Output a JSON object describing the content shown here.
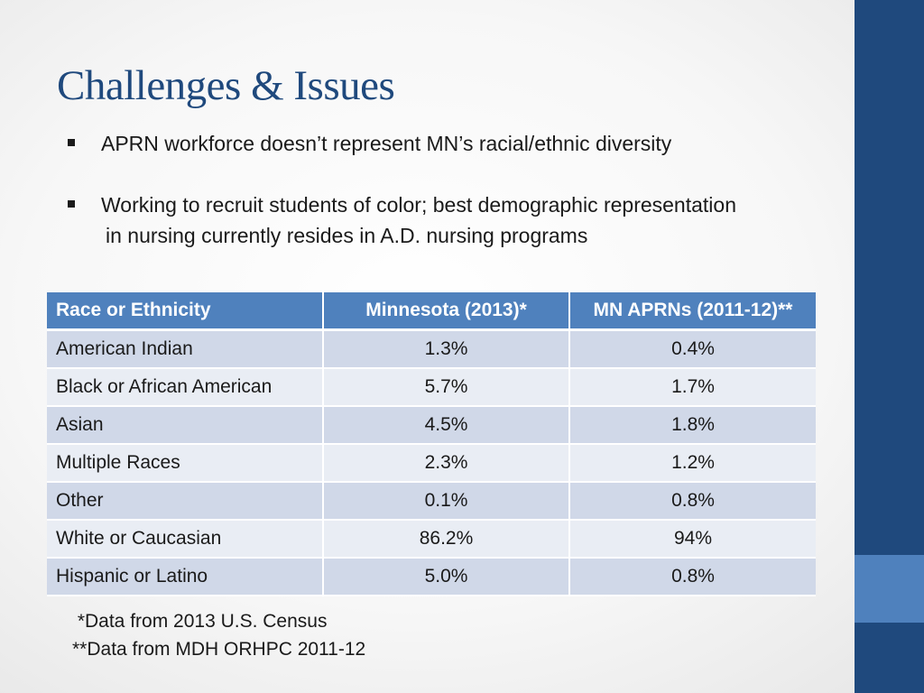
{
  "slide": {
    "title": "Challenges & Issues",
    "accent_color": "#1f497d",
    "table_header_color": "#4f81bd"
  },
  "bullets": [
    {
      "lines": [
        "APRN workforce doesn’t represent MN’s racial/ethnic diversity"
      ]
    },
    {
      "lines": [
        "Working to recruit students of color; best demographic representation",
        "in nursing  currently resides in A.D. nursing programs"
      ]
    }
  ],
  "table": {
    "headers": [
      "Race or Ethnicity",
      "Minnesota (2013)*",
      "MN APRNs (2011-12)**"
    ],
    "rows": [
      [
        "American Indian",
        "1.3%",
        "0.4%"
      ],
      [
        "Black or African American",
        "5.7%",
        "1.7%"
      ],
      [
        "Asian",
        "4.5%",
        "1.8%"
      ],
      [
        "Multiple Races",
        "2.3%",
        "1.2%"
      ],
      [
        "Other",
        "0.1%",
        "0.8%"
      ],
      [
        "White or Caucasian",
        "86.2%",
        "94%"
      ],
      [
        "Hispanic or Latino",
        "5.0%",
        "0.8%"
      ]
    ]
  },
  "footnotes": [
    " *Data from 2013 U.S. Census",
    "**Data from MDH ORHPC 2011-12"
  ]
}
